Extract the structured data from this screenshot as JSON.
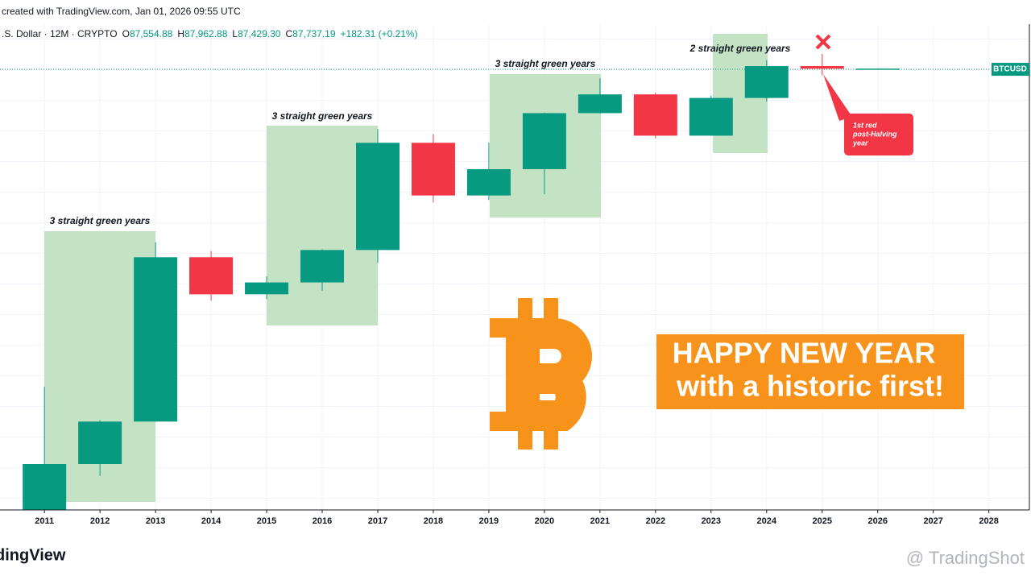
{
  "header": {
    "created": "created with TradingView.com, Jan 01, 2026 09:55 UTC",
    "symbol": ".S. Dollar · 12M · CRYPTO",
    "ohlc": [
      {
        "letter": "O",
        "value": "87,554.88"
      },
      {
        "letter": "H",
        "value": "87,962.88"
      },
      {
        "letter": "L",
        "value": "87,429.30"
      },
      {
        "letter": "C",
        "value": "87,737.19"
      }
    ],
    "change": "+182.31 (+0.21%)"
  },
  "chart_data": {
    "type": "candlestick",
    "log_scale": true,
    "x": [
      2011,
      2012,
      2013,
      2014,
      2015,
      2016,
      2017,
      2018,
      2019,
      2020,
      2021,
      2022,
      2023,
      2024,
      2025,
      2026
    ],
    "open": [
      0.3,
      4.7,
      13.5,
      805,
      320,
      430,
      963,
      13860,
      3740,
      7190,
      28990,
      46200,
      16550,
      42280,
      93430,
      87554.88
    ],
    "high": [
      32,
      14,
      1165,
      940,
      500,
      980,
      19500,
      17200,
      13880,
      29300,
      69000,
      48200,
      44700,
      108300,
      126200,
      87962.88
    ],
    "low": [
      0.3,
      3.5,
      13.5,
      275,
      285,
      350,
      700,
      3150,
      3350,
      3850,
      28800,
      15480,
      16490,
      38550,
      74400,
      87429.3
    ],
    "close": [
      4.7,
      13.5,
      805,
      320,
      430,
      963,
      13860,
      3740,
      7190,
      28990,
      46200,
      16550,
      42280,
      93430,
      87554.88,
      87737.19
    ],
    "up_color": "#089981",
    "down_color": "#f23645",
    "xlim": [
      2010.2,
      2028.73
    ],
    "xticks": [
      2011,
      2012,
      2013,
      2014,
      2015,
      2016,
      2017,
      2018,
      2019,
      2020,
      2021,
      2022,
      2023,
      2024,
      2025,
      2026,
      2027,
      2028
    ],
    "ylim": [
      1.5,
      265000
    ],
    "grid": true,
    "price_label": "BTCUSD",
    "annotations": [
      "3 straight green years",
      "3 straight green years",
      "3 straight green years",
      "2 straight green years"
    ],
    "callout": [
      "1st red",
      "post-Halving",
      "year"
    ],
    "banner": [
      "HAPPY NEW YEAR",
      "with a historic first!"
    ]
  },
  "footer": {
    "logo": "TradingView",
    "watermark": "@ TradingShot"
  }
}
